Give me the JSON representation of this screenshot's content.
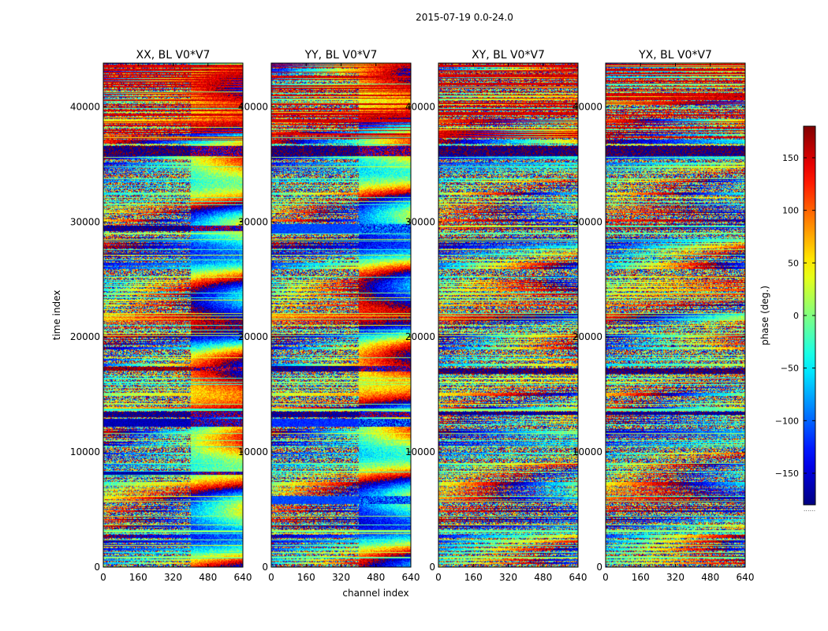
{
  "figure_title": "2015-07-19 0.0-24.0",
  "colors": {
    "colormap": "jet",
    "stops": [
      "#00007f",
      "#0000ff",
      "#007fff",
      "#00ffff",
      "#7fff7f",
      "#ffff00",
      "#ff7f00",
      "#ff0000",
      "#7f0000"
    ],
    "axes_edge": "#000000",
    "background": "#ffffff"
  },
  "chart_data": [
    {
      "type": "heatmap",
      "title": "XX, BL V0*V7",
      "xlabel": "",
      "ylabel": "time index",
      "xlim": [
        0,
        640
      ],
      "ylim": [
        0,
        43800
      ],
      "xticks": [
        0,
        160,
        320,
        480,
        640
      ],
      "yticks": [
        0,
        10000,
        20000,
        30000,
        40000
      ],
      "colormap": "jet",
      "vmin": -180,
      "vmax": 180,
      "pattern": {
        "noisy_channel_split": 400,
        "bands": [
          {
            "start": 35700,
            "end": 36600,
            "phase": -175
          },
          {
            "start": 29200,
            "end": 29700,
            "phase": -170
          },
          {
            "start": 17100,
            "end": 17400,
            "phase": 170
          },
          {
            "start": 13000,
            "end": 13500,
            "phase": -170
          },
          {
            "start": 12200,
            "end": 12900,
            "phase": -160
          },
          {
            "start": 8000,
            "end": 8300,
            "phase": -165
          }
        ]
      }
    },
    {
      "type": "heatmap",
      "title": "YY, BL V0*V7",
      "xlabel": "channel index",
      "ylabel": "",
      "xlim": [
        0,
        640
      ],
      "ylim": [
        0,
        43800
      ],
      "xticks": [
        0,
        160,
        320,
        480,
        640
      ],
      "yticks": [
        0,
        10000,
        20000,
        30000,
        40000
      ],
      "colormap": "jet",
      "vmin": -180,
      "vmax": 180,
      "pattern": {
        "noisy_channel_split": 400,
        "bands": [
          {
            "start": 35700,
            "end": 36600,
            "phase": -175
          },
          {
            "start": 29000,
            "end": 29800,
            "phase": -110
          },
          {
            "start": 17000,
            "end": 17500,
            "phase": -170
          },
          {
            "start": 13000,
            "end": 13500,
            "phase": -170
          },
          {
            "start": 12200,
            "end": 12900,
            "phase": -120
          },
          {
            "start": 5500,
            "end": 6200,
            "phase": -110
          }
        ]
      }
    },
    {
      "type": "heatmap",
      "title": "XY, BL V0*V7",
      "xlabel": "",
      "ylabel": "",
      "xlim": [
        0,
        640
      ],
      "ylim": [
        0,
        43800
      ],
      "xticks": [
        0,
        160,
        320,
        480,
        640
      ],
      "yticks": [
        0,
        10000,
        20000,
        30000,
        40000
      ],
      "colormap": "jet",
      "vmin": -180,
      "vmax": 180,
      "pattern": {
        "noisy_channel_split": 640,
        "bands": [
          {
            "start": 35700,
            "end": 36600,
            "phase": -175
          },
          {
            "start": 16800,
            "end": 17300,
            "phase": -175
          },
          {
            "start": 13200,
            "end": 13500,
            "phase": -170
          }
        ]
      }
    },
    {
      "type": "heatmap",
      "title": "YX, BL V0*V7",
      "xlabel": "",
      "ylabel": "",
      "xlim": [
        0,
        640
      ],
      "ylim": [
        0,
        43800
      ],
      "xticks": [
        0,
        160,
        320,
        480,
        640
      ],
      "yticks": [
        0,
        10000,
        20000,
        30000,
        40000
      ],
      "colormap": "jet",
      "vmin": -180,
      "vmax": 180,
      "pattern": {
        "noisy_channel_split": 640,
        "bands": [
          {
            "start": 35700,
            "end": 36600,
            "phase": -175
          },
          {
            "start": 16800,
            "end": 17300,
            "phase": -175
          },
          {
            "start": 13200,
            "end": 13500,
            "phase": -170
          }
        ]
      }
    }
  ],
  "colorbar": {
    "label": "phase (deg.)",
    "range": [
      -180,
      180
    ],
    "ticks": [
      -150,
      -100,
      -50,
      0,
      50,
      100,
      150
    ],
    "tick_labels": [
      "−150",
      "−100",
      "−50",
      "0",
      "50",
      "100",
      "150"
    ],
    "offset_text": "......"
  }
}
